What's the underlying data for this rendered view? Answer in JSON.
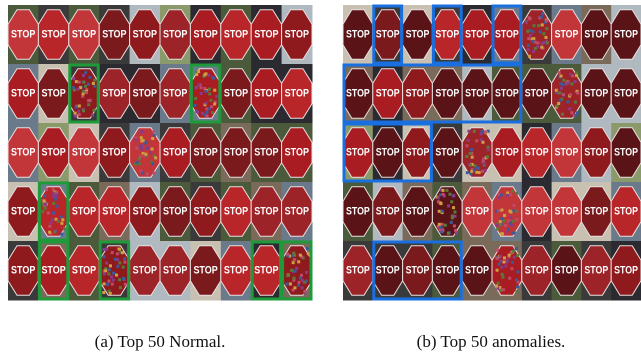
{
  "sign_text": "STOP",
  "figures": [
    {
      "caption": "(a) Top 50 Normal."
    },
    {
      "caption": "(b) Top 50 anomalies."
    }
  ]
}
